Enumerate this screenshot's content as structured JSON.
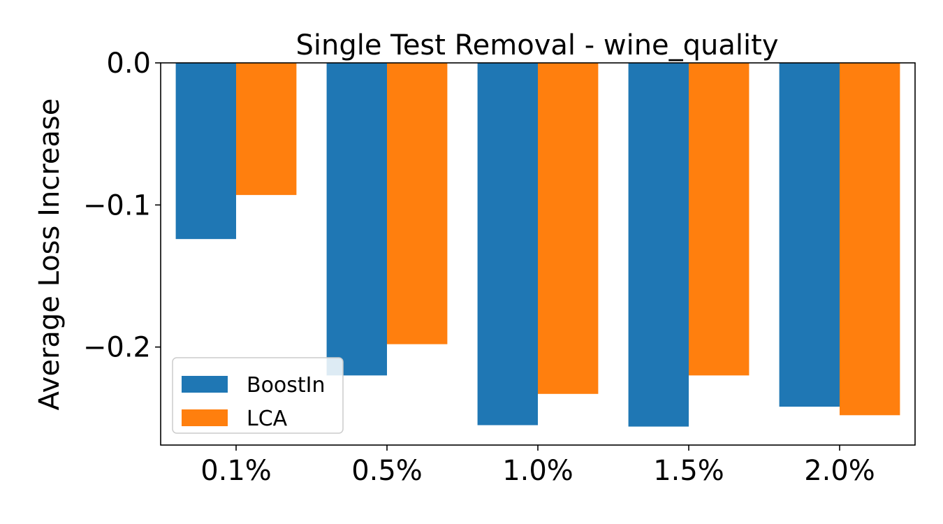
{
  "chart_data": {
    "type": "bar",
    "title": "Single Test Removal - wine_quality",
    "xlabel": "",
    "ylabel": "Average Loss Increase",
    "categories": [
      "0.1%",
      "0.5%",
      "1.0%",
      "1.5%",
      "2.0%"
    ],
    "series": [
      {
        "name": "BoostIn",
        "color": "#1f77b4",
        "values": [
          -0.124,
          -0.22,
          -0.255,
          -0.256,
          -0.242
        ]
      },
      {
        "name": "LCA",
        "color": "#ff7f0e",
        "values": [
          -0.093,
          -0.198,
          -0.233,
          -0.22,
          -0.248
        ]
      }
    ],
    "ylim": [
      -0.269,
      0.0
    ],
    "yticks": [
      0.0,
      -0.1,
      -0.2
    ],
    "ytick_labels": [
      "0.0",
      "−0.1",
      "−0.2"
    ],
    "legend_position": "lower-left",
    "grid": false
  }
}
